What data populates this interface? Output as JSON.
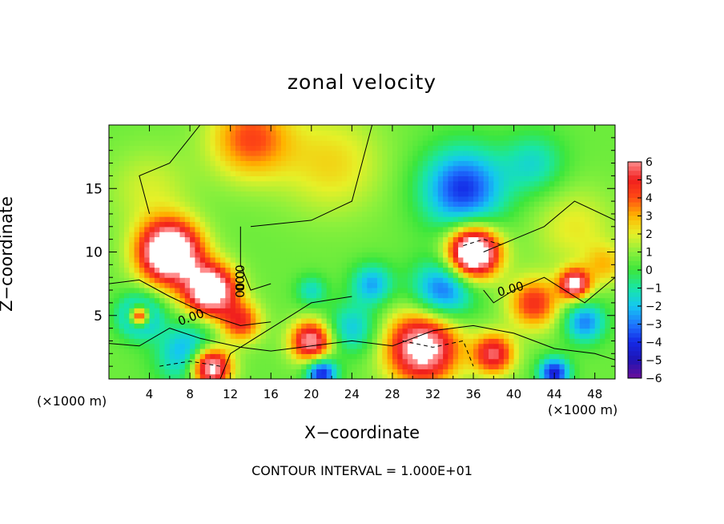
{
  "chart_data": {
    "type": "heatmap",
    "title": "zonal velocity",
    "xlabel": "X−coordinate",
    "ylabel": "Z−coordinate",
    "x_unit_label": "(×1000 m)",
    "footer": "CONTOUR INTERVAL = 1.000E+01",
    "xlim": [
      0,
      50
    ],
    "ylim": [
      0,
      20
    ],
    "x_ticks": [
      "4",
      "8",
      "12",
      "16",
      "20",
      "24",
      "28",
      "32",
      "36",
      "40",
      "44",
      "48"
    ],
    "y_ticks": [
      "5",
      "10",
      "15"
    ],
    "colorbar": {
      "ticks": [
        "6",
        "5",
        "4",
        "3",
        "2",
        "1",
        "0",
        "−1",
        "−2",
        "−3",
        "−4",
        "−5",
        "−6"
      ],
      "range": [
        -6,
        6
      ]
    },
    "contour_labels": [
      "0.00",
      "0.00",
      "0.00",
      "0.00"
    ],
    "blobs": [
      {
        "x": 14,
        "y": 19,
        "v": 3.5,
        "r": 4
      },
      {
        "x": 22,
        "y": 17,
        "v": 1.8,
        "r": 5
      },
      {
        "x": 4,
        "y": 15,
        "v": 1.2,
        "r": 4
      },
      {
        "x": 6,
        "y": 10,
        "v": 9,
        "r": 3
      },
      {
        "x": 10,
        "y": 7,
        "v": 8,
        "r": 2.5
      },
      {
        "x": 13,
        "y": 4.5,
        "v": 4,
        "r": 2
      },
      {
        "x": 35,
        "y": 15,
        "v": -4.5,
        "r": 4
      },
      {
        "x": 42,
        "y": 17,
        "v": -2,
        "r": 3
      },
      {
        "x": 46,
        "y": 12,
        "v": 1.5,
        "r": 4
      },
      {
        "x": 36,
        "y": 10,
        "v": 9,
        "r": 2.5
      },
      {
        "x": 33,
        "y": 7,
        "v": -4,
        "r": 3
      },
      {
        "x": 26,
        "y": 7.5,
        "v": -3,
        "r": 2
      },
      {
        "x": 20,
        "y": 7,
        "v": -2,
        "r": 1.5
      },
      {
        "x": 3,
        "y": 5,
        "v": -4.5,
        "r": 2
      },
      {
        "x": 3,
        "y": 5,
        "v": 8,
        "r": 1
      },
      {
        "x": 8,
        "y": 2,
        "v": -3.5,
        "r": 3
      },
      {
        "x": 10,
        "y": 1,
        "v": 8,
        "r": 2
      },
      {
        "x": 20,
        "y": 3,
        "v": 6,
        "r": 2
      },
      {
        "x": 31,
        "y": 2.5,
        "v": 7,
        "r": 3.5
      },
      {
        "x": 38,
        "y": 2,
        "v": 5,
        "r": 2
      },
      {
        "x": 42,
        "y": 6,
        "v": 4,
        "r": 2.5
      },
      {
        "x": 46,
        "y": 7.5,
        "v": 6,
        "r": 1.5
      },
      {
        "x": 47,
        "y": 4.5,
        "v": -3.5,
        "r": 2
      },
      {
        "x": 44,
        "y": 0.5,
        "v": -5,
        "r": 1.5
      },
      {
        "x": 21,
        "y": 0.5,
        "v": -5,
        "r": 1.5
      },
      {
        "x": 24,
        "y": 4,
        "v": -2.5,
        "r": 2.5
      },
      {
        "x": 49,
        "y": 9,
        "v": 2,
        "r": 2
      }
    ]
  }
}
